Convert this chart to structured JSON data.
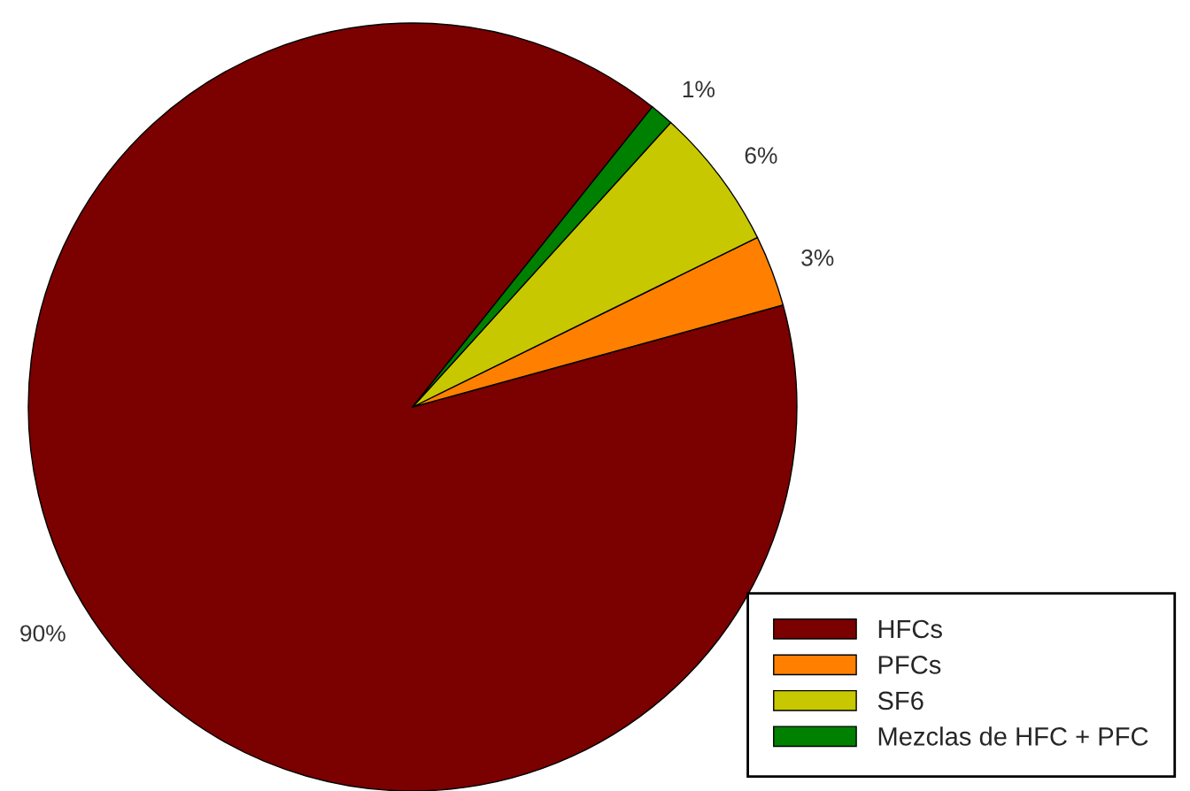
{
  "chart_data": {
    "type": "pie",
    "categories": [
      "HFCs",
      "PFCs",
      "SF6",
      "Mezclas de HFC + PFC"
    ],
    "values": [
      90,
      3,
      6,
      1
    ],
    "colors": [
      "#7b0000",
      "#ff8000",
      "#c8c800",
      "#008000"
    ],
    "value_labels": [
      "90%",
      "3%",
      "6%",
      "1%"
    ],
    "legend": "bottom right"
  }
}
